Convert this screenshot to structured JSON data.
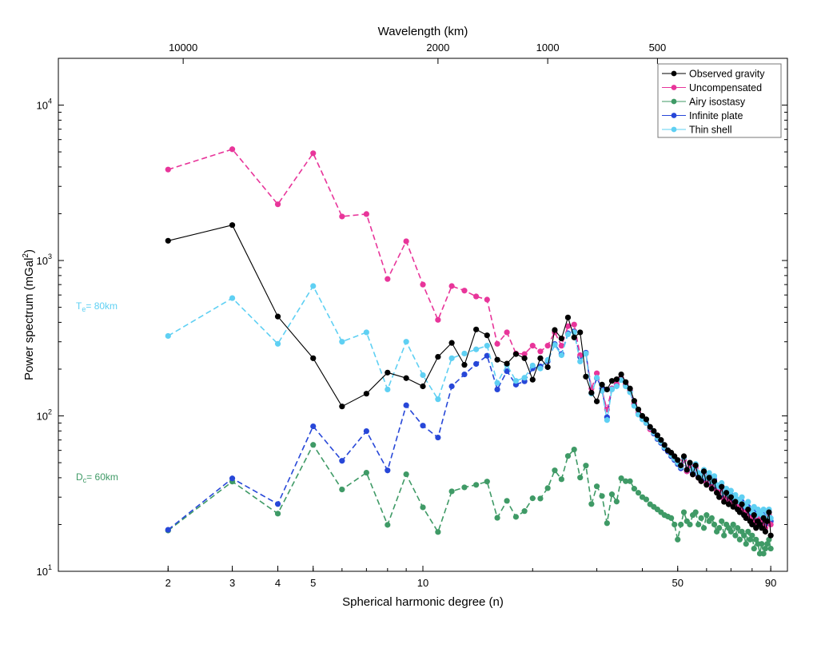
{
  "chart_data": {
    "type": "line",
    "xlabel": "Spherical harmonic degree (n)",
    "ylabel": "Power spectrum (mGal",
    "ylabel_sup": "2",
    "ylabel_end": ")",
    "top_xlabel": "Wavelength (km)",
    "xscale": "log",
    "yscale": "log",
    "xlim": [
      1,
      100
    ],
    "ylim": [
      10,
      20000
    ],
    "x_ticks": [
      2,
      3,
      4,
      5,
      10,
      50,
      90
    ],
    "x_tick_labels": [
      "2",
      "3",
      "4",
      "5",
      "10",
      "50",
      "90"
    ],
    "y_ticks": [
      10,
      100,
      1000,
      10000
    ],
    "y_tick_base": "10",
    "y_tick_exponents": [
      "1",
      "2",
      "3",
      "4"
    ],
    "top_ticks": [
      10000,
      2000,
      1000,
      500
    ],
    "top_tick_labels": [
      "10000",
      "2000",
      "1000",
      "500"
    ],
    "grid": false,
    "legend_position": "top-right",
    "annotations": [
      {
        "main": "T",
        "sub": "e",
        "rest": "= 80km",
        "color": "#5fd0f3",
        "x": 1.1,
        "y": 520
      },
      {
        "main": "D",
        "sub": "c",
        "rest": "= 60km",
        "color": "#3f9a66",
        "x": 1.1,
        "y": 40
      }
    ],
    "x": [
      2,
      3,
      4,
      5,
      6,
      7,
      8,
      9,
      10,
      11,
      12,
      13,
      14,
      15,
      16,
      17,
      18,
      19,
      20,
      21,
      22,
      23,
      24,
      25,
      26,
      27,
      28,
      29,
      30,
      31,
      32,
      33,
      34,
      35,
      36,
      37,
      38,
      39,
      40,
      41,
      42,
      43,
      44,
      45,
      46,
      47,
      48,
      49,
      50,
      51,
      52,
      53,
      54,
      55,
      56,
      57,
      58,
      59,
      60,
      61,
      62,
      63,
      64,
      65,
      66,
      67,
      68,
      69,
      70,
      71,
      72,
      73,
      74,
      75,
      76,
      77,
      78,
      79,
      80,
      81,
      82,
      83,
      84,
      85,
      86,
      87,
      88,
      89,
      90
    ],
    "series": [
      {
        "name": "Observed gravity",
        "color": "#000000",
        "dashed": false,
        "values": [
          1340,
          1690,
          436,
          235,
          115,
          139,
          190,
          175,
          155,
          240,
          295,
          213,
          360,
          330,
          230,
          217,
          250,
          235,
          171,
          235,
          206,
          357,
          315,
          430,
          320,
          345,
          179,
          141,
          124,
          159,
          148,
          168,
          172,
          185,
          165,
          150,
          125,
          110,
          100,
          95,
          85,
          80,
          75,
          70,
          65,
          60,
          58,
          55,
          52,
          48,
          55,
          45,
          50,
          42,
          48,
          40,
          38,
          44,
          36,
          40,
          34,
          38,
          32,
          30,
          35,
          28,
          32,
          27,
          30,
          26,
          28,
          25,
          24,
          27,
          23,
          22,
          25,
          21,
          20,
          23,
          19,
          21,
          20,
          19,
          22,
          18,
          21,
          24,
          17
        ]
      },
      {
        "name": "Uncompensated",
        "color": "#e8359a",
        "dashed": true,
        "values": [
          3850,
          5200,
          2300,
          4900,
          1920,
          1990,
          760,
          1330,
          700,
          415,
          685,
          640,
          587,
          560,
          291,
          345,
          252,
          250,
          283,
          260,
          283,
          345,
          283,
          378,
          387,
          246,
          252,
          150,
          188,
          145,
          110,
          150,
          160,
          175,
          160,
          145,
          120,
          105,
          97,
          90,
          82,
          78,
          72,
          68,
          63,
          60,
          56,
          53,
          50,
          47,
          52,
          44,
          48,
          42,
          46,
          40,
          38,
          42,
          37,
          40,
          35,
          38,
          33,
          32,
          34,
          29,
          31,
          28,
          30,
          27,
          28,
          26,
          25,
          27,
          24,
          23,
          25,
          22,
          21,
          23,
          20,
          22,
          21,
          20,
          22,
          19,
          21,
          23,
          20
        ]
      },
      {
        "name": "Airy isostasy",
        "color": "#3f9a66",
        "dashed": true,
        "values": [
          18.3,
          37.8,
          23.5,
          65.1,
          33.6,
          43.1,
          19.9,
          42.1,
          25.8,
          17.9,
          32.7,
          34.7,
          36,
          37.8,
          22.1,
          28.4,
          22.4,
          24.4,
          29.5,
          29.4,
          34.3,
          44.6,
          39.1,
          55.2,
          60.8,
          40.1,
          47.9,
          27.1,
          35.2,
          30.5,
          20.4,
          31.3,
          28.1,
          39.7,
          38,
          38,
          34,
          32,
          30,
          29,
          27,
          26,
          25,
          24,
          23,
          22.5,
          22,
          20,
          16,
          20,
          24,
          21,
          20,
          23,
          24,
          20,
          22,
          19,
          23,
          21,
          22,
          20,
          18,
          19,
          21,
          17,
          20,
          19,
          18,
          20,
          17,
          19,
          16,
          18,
          17,
          15,
          18,
          16,
          17,
          14,
          16,
          15,
          13,
          15,
          13,
          14,
          15,
          16,
          14
        ]
      },
      {
        "name": "Infinite plate",
        "color": "#2747d8",
        "dashed": true,
        "values": [
          18.5,
          39.6,
          27.1,
          85.7,
          51.4,
          79.8,
          44.6,
          117,
          86.6,
          72.6,
          155,
          185,
          216,
          244,
          148,
          194,
          159,
          167,
          202,
          208,
          225,
          290,
          250,
          340,
          350,
          240,
          255,
          140,
          175,
          150,
          98,
          150,
          158,
          172,
          158,
          145,
          118,
          104,
          96,
          90,
          83,
          77,
          71,
          67,
          62,
          59,
          55,
          52,
          49,
          46,
          52,
          44,
          49,
          43,
          47,
          41,
          39,
          43,
          38,
          41,
          36,
          39,
          34,
          33,
          35,
          30,
          32,
          29,
          31,
          28,
          29,
          27,
          26,
          28,
          25,
          24,
          26,
          23,
          22,
          24,
          21,
          23,
          22,
          21,
          23,
          20,
          22,
          24,
          21
        ]
      },
      {
        "name": "Thin shell",
        "color": "#5fd0f3",
        "dashed": true,
        "values": [
          327,
          573,
          291,
          685,
          300,
          345,
          148,
          300,
          183,
          128,
          235,
          252,
          268,
          283,
          163,
          213,
          168,
          176,
          211,
          202,
          229,
          286,
          246,
          335,
          345,
          224,
          252,
          139,
          176,
          145,
          94,
          148,
          155,
          170,
          155,
          142,
          116,
          102,
          95,
          90,
          84,
          78,
          72,
          68,
          63,
          60,
          56,
          53,
          50,
          47,
          54,
          45,
          50,
          45,
          49,
          43,
          41,
          45,
          40,
          43,
          38,
          41,
          36,
          35,
          37,
          32,
          34,
          31,
          33,
          30,
          31,
          29,
          28,
          30,
          27,
          26,
          28,
          25,
          24,
          26,
          23,
          25,
          24,
          23,
          25,
          22,
          24,
          25,
          22
        ]
      }
    ]
  }
}
